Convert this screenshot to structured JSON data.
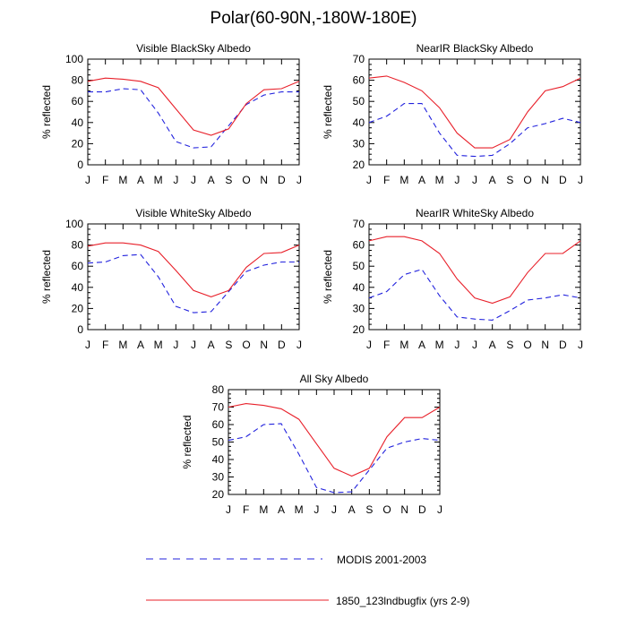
{
  "title": "Polar(60-90N,-180W-180E)",
  "legend": {
    "modis": "MODIS 2001-2003",
    "model": "1850_123lndbugfix (yrs 2-9)"
  },
  "colors": {
    "modis": "#2222dd",
    "model": "#e8202a"
  },
  "chart_data": [
    {
      "type": "line",
      "title": "Visible BlackSky Albedo",
      "ylabel": "% reflected",
      "categories": [
        "J",
        "F",
        "M",
        "A",
        "M",
        "J",
        "J",
        "A",
        "S",
        "O",
        "N",
        "D",
        "J"
      ],
      "ylim": [
        0,
        100
      ],
      "yticks": [
        0,
        20,
        40,
        60,
        80,
        100
      ],
      "series": [
        {
          "name": "MODIS 2001-2003",
          "values": [
            69,
            69,
            72,
            71,
            49,
            22,
            16,
            17,
            37,
            57,
            66,
            69,
            69
          ]
        },
        {
          "name": "1850_123lndbugfix (yrs 2-9)",
          "values": [
            79,
            82,
            81,
            79,
            73,
            53,
            33,
            28,
            34,
            58,
            71,
            72,
            79
          ]
        }
      ]
    },
    {
      "type": "line",
      "title": "NearIR BlackSky Albedo",
      "ylabel": "% reflected",
      "categories": [
        "J",
        "F",
        "M",
        "A",
        "M",
        "J",
        "J",
        "A",
        "S",
        "O",
        "N",
        "D",
        "J"
      ],
      "ylim": [
        20,
        70
      ],
      "yticks": [
        20,
        30,
        40,
        50,
        60,
        70
      ],
      "series": [
        {
          "name": "MODIS 2001-2003",
          "values": [
            40,
            43,
            49,
            49,
            35,
            24.5,
            24,
            24.5,
            30,
            37.5,
            39.5,
            42,
            40
          ]
        },
        {
          "name": "1850_123lndbugfix (yrs 2-9)",
          "values": [
            61,
            62,
            59,
            55,
            47,
            35,
            28,
            28,
            32,
            45,
            55,
            57,
            61
          ]
        }
      ]
    },
    {
      "type": "line",
      "title": "Visible WhiteSky Albedo",
      "ylabel": "% reflected",
      "categories": [
        "J",
        "F",
        "M",
        "A",
        "M",
        "J",
        "J",
        "A",
        "S",
        "O",
        "N",
        "D",
        "J"
      ],
      "ylim": [
        0,
        100
      ],
      "yticks": [
        0,
        20,
        40,
        60,
        80,
        100
      ],
      "series": [
        {
          "name": "MODIS 2001-2003",
          "values": [
            63,
            64,
            70,
            71,
            50,
            22,
            16,
            17,
            36,
            55,
            61,
            64,
            64
          ]
        },
        {
          "name": "1850_123lndbugfix (yrs 2-9)",
          "values": [
            79,
            82,
            82,
            80,
            74,
            56,
            37,
            31,
            37,
            59,
            72,
            73,
            80
          ]
        }
      ]
    },
    {
      "type": "line",
      "title": "NearIR WhiteSky Albedo",
      "ylabel": "% reflected",
      "categories": [
        "J",
        "F",
        "M",
        "A",
        "M",
        "J",
        "J",
        "A",
        "S",
        "O",
        "N",
        "D",
        "J"
      ],
      "ylim": [
        20,
        70
      ],
      "yticks": [
        20,
        30,
        40,
        50,
        60,
        70
      ],
      "series": [
        {
          "name": "MODIS 2001-2003",
          "values": [
            35,
            38,
            46,
            48.5,
            36,
            26,
            25,
            24.5,
            29,
            34,
            35,
            36.5,
            35
          ]
        },
        {
          "name": "1850_123lndbugfix (yrs 2-9)",
          "values": [
            62,
            64,
            64,
            62,
            56,
            44,
            35,
            32.5,
            35.5,
            47,
            56,
            56,
            62
          ]
        }
      ]
    },
    {
      "type": "line",
      "title": "All Sky Albedo",
      "ylabel": "% reflected",
      "categories": [
        "J",
        "F",
        "M",
        "A",
        "M",
        "J",
        "J",
        "A",
        "S",
        "O",
        "N",
        "D",
        "J"
      ],
      "ylim": [
        20,
        80
      ],
      "yticks": [
        20,
        30,
        40,
        50,
        60,
        70,
        80
      ],
      "series": [
        {
          "name": "MODIS 2001-2003",
          "values": [
            51,
            53,
            60,
            60.5,
            43,
            24,
            21,
            21.5,
            34,
            46.5,
            50,
            52,
            51
          ]
        },
        {
          "name": "1850_123lndbugfix (yrs 2-9)",
          "values": [
            70,
            72,
            71,
            69,
            63,
            49,
            35,
            30.5,
            35,
            53,
            64,
            64,
            70
          ]
        }
      ]
    }
  ]
}
